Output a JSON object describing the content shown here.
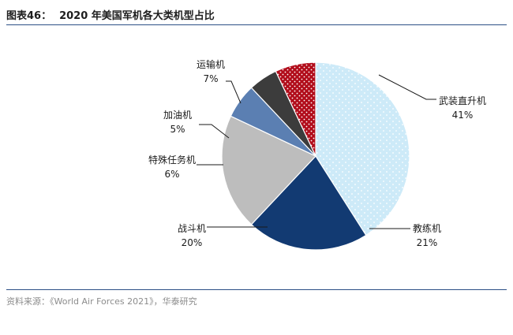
{
  "figure": {
    "number_label": "图表46：",
    "title": "2020 年美国军机各大类机型占比",
    "source": "资料来源：《World Air Forces 2021》，华泰研究"
  },
  "chart_data": {
    "type": "pie",
    "title": "2020 年美国军机各大类机型占比",
    "slices": [
      {
        "name": "武装直升机",
        "value": 41,
        "label": "41%",
        "color": "#cdeaf8",
        "pattern": "dots-blue"
      },
      {
        "name": "教练机",
        "value": 21,
        "label": "21%",
        "color": "#123a72",
        "pattern": "none"
      },
      {
        "name": "战斗机",
        "value": 20,
        "label": "20%",
        "color": "#bdbdbd",
        "pattern": "none"
      },
      {
        "name": "特殊任务机",
        "value": 6,
        "label": "6%",
        "color": "#5b7fb2",
        "pattern": "none"
      },
      {
        "name": "加油机",
        "value": 5,
        "label": "5%",
        "color": "#3c3c3c",
        "pattern": "none"
      },
      {
        "name": "运输机",
        "value": 7,
        "label": "7%",
        "color": "#b10d1b",
        "pattern": "dots-white"
      }
    ],
    "start_angle_deg": 90,
    "direction": "clockwise",
    "legend": "none",
    "labels": "outside-with-leader-lines"
  }
}
